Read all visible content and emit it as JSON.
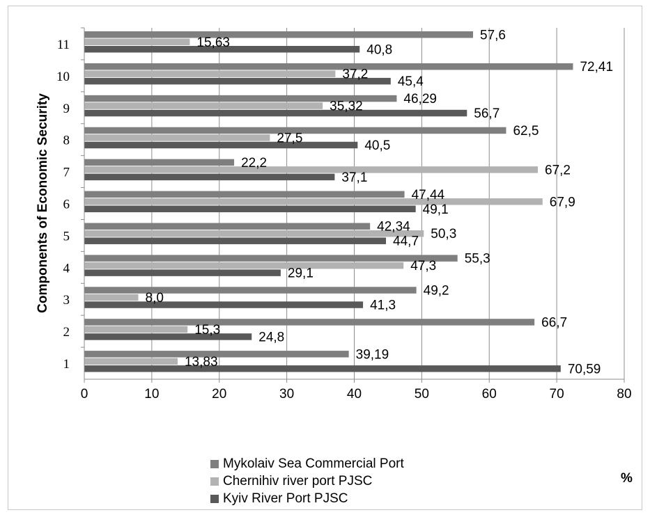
{
  "chart_data": {
    "type": "bar",
    "orientation": "horizontal",
    "ylabel": "Components of Economic Security",
    "unit_label": "%",
    "categories": [
      "1",
      "2",
      "3",
      "4",
      "5",
      "6",
      "7",
      "8",
      "9",
      "10",
      "11"
    ],
    "series": [
      {
        "name": "Mykolaiv Sea Commercial Port",
        "color": "#7f7f7f",
        "values": [
          39.19,
          66.7,
          49.2,
          55.3,
          42.34,
          47.44,
          22.2,
          62.5,
          46.29,
          72.41,
          57.6
        ],
        "labels": [
          "39,19",
          "66,7",
          "49,2",
          "55,3",
          "42,34",
          "47,44",
          "22,2",
          "62,5",
          "46,29",
          "72,41",
          "57,6"
        ]
      },
      {
        "name": "Chernihiv river port PJSC",
        "color": "#b2b2b2",
        "values": [
          13.83,
          15.3,
          8.0,
          47.3,
          50.3,
          67.9,
          67.2,
          27.5,
          35.32,
          37.2,
          15.63
        ],
        "labels": [
          "13,83",
          "15,3",
          "8,0",
          "47,3",
          "50,3",
          "67,9",
          "67,2",
          "27,5",
          "35,32",
          "37,2",
          "15,63"
        ]
      },
      {
        "name": "Kyiv River Port PJSC",
        "color": "#595959",
        "values": [
          70.59,
          24.8,
          41.3,
          29.1,
          44.7,
          49.1,
          37.1,
          40.5,
          56.7,
          45.4,
          40.8
        ],
        "labels": [
          "70,59",
          "24,8",
          "41,3",
          "29,1",
          "44,7",
          "49,1",
          "37,1",
          "40,5",
          "56,7",
          "45,4",
          "40,8"
        ]
      }
    ],
    "xlim": [
      0,
      80
    ],
    "xticks": [
      "0",
      "10",
      "20",
      "30",
      "40",
      "50",
      "60",
      "70",
      "80"
    ],
    "grid": true,
    "legend_position": "bottom"
  }
}
